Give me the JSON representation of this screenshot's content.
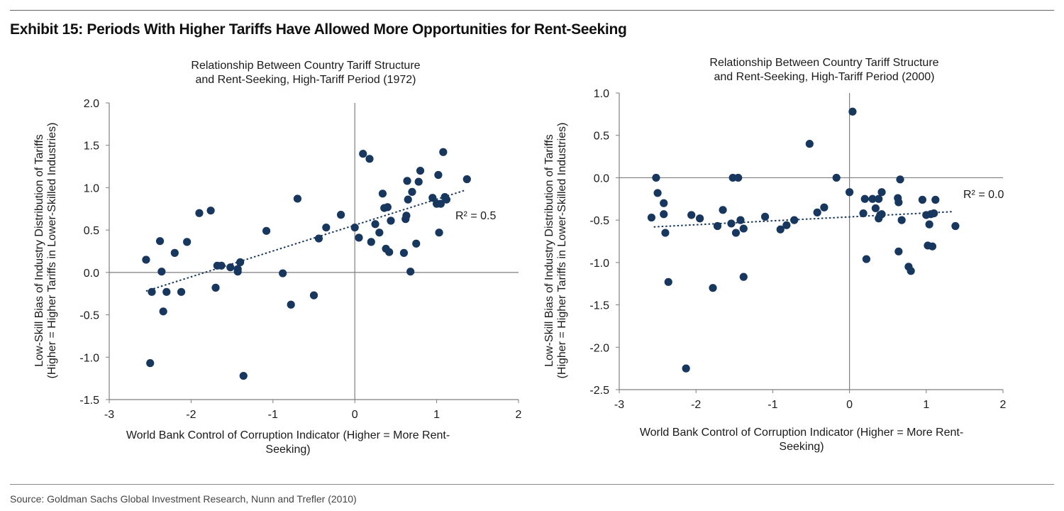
{
  "exhibit_title": "Exhibit 15: Periods With Higher Tariffs Have Allowed More Opportunities for Rent-Seeking",
  "source": "Source: Goldman Sachs Global Investment Research, Nunn and Trefler (2010)",
  "colors": {
    "point": "#17375e",
    "trend": "#17375e",
    "axis": "#7f7f7f"
  },
  "chart_data": [
    {
      "type": "scatter",
      "title_lines": [
        "Relationship Between Country Tariff Structure",
        "and Rent-Seeking, High-Tariff Period (1972)"
      ],
      "xlabel_lines": [
        "World Bank Control of Corruption Indicator (Higher = More Rent-",
        "Seeking)"
      ],
      "ylabel_lines": [
        "Low-Skill Bias of Industry Distribution of Tariffs",
        "(Higher = Higher Tariffs in Lower-Skilled Industries)"
      ],
      "xlim": [
        -3,
        2
      ],
      "ylim": [
        -1.5,
        2.0
      ],
      "xticks": [
        -3,
        -2,
        -1,
        0,
        1,
        2
      ],
      "xtick_labels": [
        "-3",
        "-2",
        "-1",
        "0",
        "1",
        "2"
      ],
      "yticks": [
        -1.5,
        -1.0,
        -0.5,
        0.0,
        0.5,
        1.0,
        1.5,
        2.0
      ],
      "ytick_labels": [
        "-1.5",
        "-1.0",
        "-0.5",
        "0.0",
        "0.5",
        "1.0",
        "1.5",
        "2.0"
      ],
      "r2_label": "R² = 0.5",
      "trendline": {
        "x0": -2.55,
        "y0": -0.22,
        "x1": 1.35,
        "y1": 0.97
      },
      "points": [
        [
          -2.55,
          0.15
        ],
        [
          -2.48,
          -0.23
        ],
        [
          -2.5,
          -1.07
        ],
        [
          -2.38,
          0.37
        ],
        [
          -2.36,
          0.01
        ],
        [
          -2.34,
          -0.46
        ],
        [
          -2.3,
          -0.23
        ],
        [
          -2.2,
          0.23
        ],
        [
          -2.12,
          -0.23
        ],
        [
          -2.05,
          0.36
        ],
        [
          -1.9,
          0.7
        ],
        [
          -1.76,
          0.73
        ],
        [
          -1.7,
          -0.18
        ],
        [
          -1.68,
          0.08
        ],
        [
          -1.63,
          0.08
        ],
        [
          -1.52,
          0.06
        ],
        [
          -1.43,
          0.04
        ],
        [
          -1.43,
          0.01
        ],
        [
          -1.4,
          0.12
        ],
        [
          -1.36,
          -1.22
        ],
        [
          -1.08,
          0.49
        ],
        [
          -0.88,
          -0.01
        ],
        [
          -0.78,
          -0.38
        ],
        [
          -0.7,
          0.87
        ],
        [
          -0.5,
          -0.27
        ],
        [
          -0.44,
          0.4
        ],
        [
          -0.35,
          0.53
        ],
        [
          -0.17,
          0.68
        ],
        [
          0.0,
          0.53
        ],
        [
          0.05,
          0.41
        ],
        [
          0.1,
          1.4
        ],
        [
          0.18,
          1.34
        ],
        [
          0.2,
          0.36
        ],
        [
          0.25,
          0.57
        ],
        [
          0.3,
          0.47
        ],
        [
          0.34,
          0.93
        ],
        [
          0.36,
          0.76
        ],
        [
          0.38,
          0.28
        ],
        [
          0.4,
          0.77
        ],
        [
          0.42,
          0.24
        ],
        [
          0.44,
          0.61
        ],
        [
          0.6,
          0.23
        ],
        [
          0.62,
          0.63
        ],
        [
          0.63,
          0.67
        ],
        [
          0.64,
          1.08
        ],
        [
          0.65,
          0.86
        ],
        [
          0.68,
          0.01
        ],
        [
          0.7,
          0.95
        ],
        [
          0.75,
          0.34
        ],
        [
          0.78,
          1.07
        ],
        [
          0.8,
          1.2
        ],
        [
          0.95,
          0.88
        ],
        [
          1.0,
          0.81
        ],
        [
          1.02,
          1.15
        ],
        [
          1.03,
          0.47
        ],
        [
          1.05,
          0.81
        ],
        [
          1.08,
          1.42
        ],
        [
          1.1,
          0.89
        ],
        [
          1.12,
          0.86
        ],
        [
          1.37,
          1.1
        ]
      ]
    },
    {
      "type": "scatter",
      "title_lines": [
        "Relationship Between Country Tariff Structure",
        "and Rent-Seeking, High-Tariff Period (2000)"
      ],
      "xlabel_lines": [
        "World Bank Control of Corruption Indicator (Higher = More Rent-",
        "Seeking)"
      ],
      "ylabel_lines": [
        "Low-Skill Bias of Industry Distribution of Tariffs",
        "(Higher = Higher Tariffs in Lower-Skilled Industries)"
      ],
      "xlim": [
        -3,
        2
      ],
      "ylim": [
        -2.5,
        1.0
      ],
      "xticks": [
        -3,
        -2,
        -1,
        0,
        1,
        2
      ],
      "xtick_labels": [
        "-3",
        "-2",
        "-1",
        "0",
        "1",
        "2"
      ],
      "yticks": [
        -2.5,
        -2.0,
        -1.5,
        -1.0,
        -0.5,
        0.0,
        0.5,
        1.0
      ],
      "ytick_labels": [
        "-2.5",
        "-2.0",
        "-1.5",
        "-1.0",
        "-0.5",
        "0.0",
        "0.5",
        "1.0"
      ],
      "r2_label": "R² = 0.0",
      "trendline": {
        "x0": -2.55,
        "y0": -0.58,
        "x1": 1.35,
        "y1": -0.4
      },
      "points": [
        [
          -2.58,
          -0.47
        ],
        [
          -2.52,
          0.0
        ],
        [
          -2.5,
          -0.18
        ],
        [
          -2.42,
          -0.3
        ],
        [
          -2.42,
          -0.43
        ],
        [
          -2.4,
          -0.65
        ],
        [
          -2.36,
          -1.23
        ],
        [
          -2.13,
          -2.25
        ],
        [
          -2.06,
          -0.44
        ],
        [
          -1.95,
          -0.48
        ],
        [
          -1.78,
          -1.3
        ],
        [
          -1.72,
          -0.57
        ],
        [
          -1.65,
          -0.38
        ],
        [
          -1.54,
          -0.54
        ],
        [
          -1.52,
          0.0
        ],
        [
          -1.48,
          -0.65
        ],
        [
          -1.45,
          0.0
        ],
        [
          -1.42,
          -0.5
        ],
        [
          -1.38,
          -1.17
        ],
        [
          -1.38,
          -0.6
        ],
        [
          -1.1,
          -0.46
        ],
        [
          -0.9,
          -0.61
        ],
        [
          -0.82,
          -0.56
        ],
        [
          -0.72,
          -0.5
        ],
        [
          -0.52,
          0.4
        ],
        [
          -0.42,
          -0.41
        ],
        [
          -0.33,
          -0.35
        ],
        [
          -0.17,
          0.0
        ],
        [
          0.04,
          0.78
        ],
        [
          0.0,
          -0.17
        ],
        [
          0.18,
          -0.42
        ],
        [
          0.2,
          -0.25
        ],
        [
          0.22,
          -0.96
        ],
        [
          0.3,
          -0.25
        ],
        [
          0.34,
          -0.36
        ],
        [
          0.38,
          -0.25
        ],
        [
          0.38,
          -0.48
        ],
        [
          0.4,
          -0.44
        ],
        [
          0.42,
          -0.17
        ],
        [
          0.42,
          -0.43
        ],
        [
          0.63,
          -0.24
        ],
        [
          0.64,
          -0.87
        ],
        [
          0.64,
          -0.29
        ],
        [
          0.66,
          -0.02
        ],
        [
          0.68,
          -0.5
        ],
        [
          0.77,
          -1.05
        ],
        [
          0.8,
          -1.1
        ],
        [
          0.95,
          -0.26
        ],
        [
          1.0,
          -0.44
        ],
        [
          1.02,
          -0.8
        ],
        [
          1.04,
          -0.55
        ],
        [
          1.06,
          -0.43
        ],
        [
          1.08,
          -0.81
        ],
        [
          1.1,
          -0.42
        ],
        [
          1.12,
          -0.26
        ],
        [
          1.38,
          -0.57
        ]
      ]
    }
  ]
}
